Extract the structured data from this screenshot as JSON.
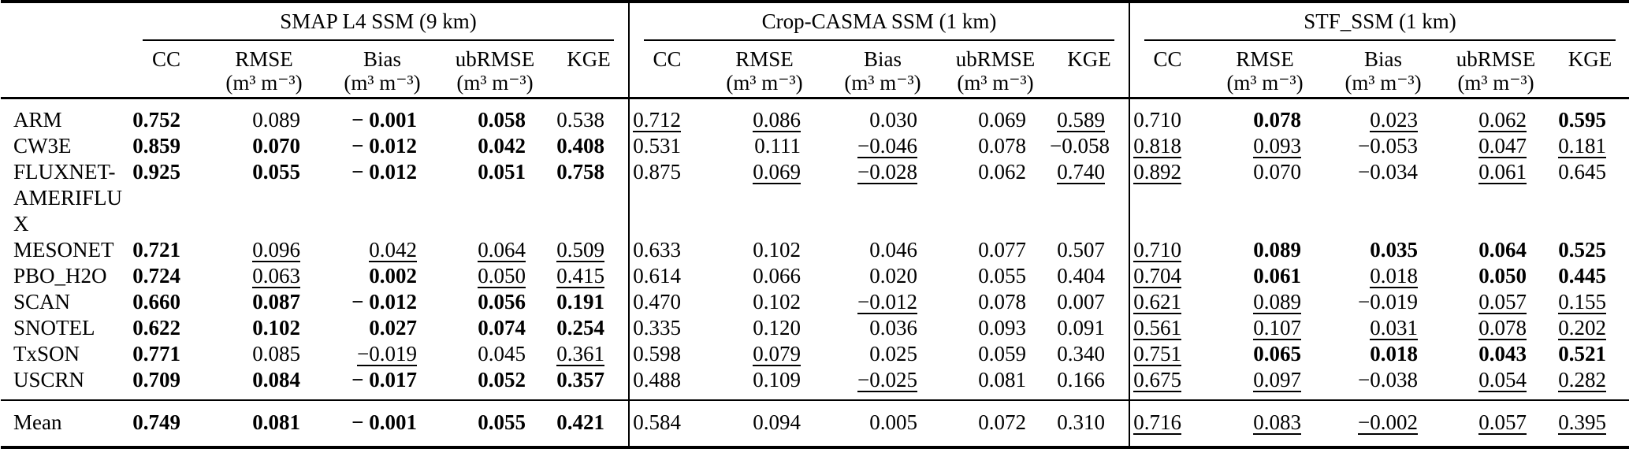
{
  "table": {
    "groups": [
      {
        "label": "SMAP L4 SSM (9 km)"
      },
      {
        "label": "Crop-CASMA SSM (1 km)"
      },
      {
        "label": "STF_SSM (1 km)"
      }
    ],
    "metrics": [
      {
        "name": "CC",
        "unit": ""
      },
      {
        "name": "RMSE",
        "unit": "(m³ m⁻³)"
      },
      {
        "name": "Bias",
        "unit": "(m³ m⁻³)"
      },
      {
        "name": "ubRMSE",
        "unit": "(m³ m⁻³)"
      },
      {
        "name": "KGE",
        "unit": ""
      }
    ],
    "rows": [
      {
        "label": "ARM",
        "cells": [
          {
            "v": "0.752",
            "s": "b"
          },
          {
            "v": "0.089",
            "s": ""
          },
          {
            "v": "− 0.001",
            "s": "b"
          },
          {
            "v": "0.058",
            "s": "b"
          },
          {
            "v": "0.538",
            "s": ""
          },
          {
            "v": "0.712",
            "s": "u"
          },
          {
            "v": "0.086",
            "s": "u"
          },
          {
            "v": "0.030",
            "s": ""
          },
          {
            "v": "0.069",
            "s": ""
          },
          {
            "v": "0.589",
            "s": "u"
          },
          {
            "v": "0.710",
            "s": ""
          },
          {
            "v": "0.078",
            "s": "b"
          },
          {
            "v": "0.023",
            "s": "u"
          },
          {
            "v": "0.062",
            "s": "u"
          },
          {
            "v": "0.595",
            "s": "b"
          }
        ]
      },
      {
        "label": "CW3E",
        "cells": [
          {
            "v": "0.859",
            "s": "b"
          },
          {
            "v": "0.070",
            "s": "b"
          },
          {
            "v": "− 0.012",
            "s": "b"
          },
          {
            "v": "0.042",
            "s": "b"
          },
          {
            "v": "0.408",
            "s": "b"
          },
          {
            "v": "0.531",
            "s": ""
          },
          {
            "v": "0.111",
            "s": ""
          },
          {
            "v": "−0.046",
            "s": "u"
          },
          {
            "v": "0.078",
            "s": ""
          },
          {
            "v": "−0.058",
            "s": ""
          },
          {
            "v": "0.818",
            "s": "u"
          },
          {
            "v": "0.093",
            "s": "u"
          },
          {
            "v": "−0.053",
            "s": ""
          },
          {
            "v": "0.047",
            "s": "u"
          },
          {
            "v": "0.181",
            "s": "u"
          }
        ]
      },
      {
        "label": "FLUXNET-AMERIFLUX",
        "cells": [
          {
            "v": "0.925",
            "s": "b"
          },
          {
            "v": "0.055",
            "s": "b"
          },
          {
            "v": "− 0.012",
            "s": "b"
          },
          {
            "v": "0.051",
            "s": "b"
          },
          {
            "v": "0.758",
            "s": "b"
          },
          {
            "v": "0.875",
            "s": ""
          },
          {
            "v": "0.069",
            "s": "u"
          },
          {
            "v": "−0.028",
            "s": "u"
          },
          {
            "v": "0.062",
            "s": ""
          },
          {
            "v": "0.740",
            "s": "u"
          },
          {
            "v": "0.892",
            "s": "u"
          },
          {
            "v": "0.070",
            "s": ""
          },
          {
            "v": "−0.034",
            "s": ""
          },
          {
            "v": "0.061",
            "s": "u"
          },
          {
            "v": "0.645",
            "s": ""
          }
        ]
      },
      {
        "label": "MESONET",
        "cells": [
          {
            "v": "0.721",
            "s": "b"
          },
          {
            "v": "0.096",
            "s": "u"
          },
          {
            "v": "0.042",
            "s": "u"
          },
          {
            "v": "0.064",
            "s": "u"
          },
          {
            "v": "0.509",
            "s": "u"
          },
          {
            "v": "0.633",
            "s": ""
          },
          {
            "v": "0.102",
            "s": ""
          },
          {
            "v": "0.046",
            "s": ""
          },
          {
            "v": "0.077",
            "s": ""
          },
          {
            "v": "0.507",
            "s": ""
          },
          {
            "v": "0.710",
            "s": "u"
          },
          {
            "v": "0.089",
            "s": "b"
          },
          {
            "v": "0.035",
            "s": "b"
          },
          {
            "v": "0.064",
            "s": "b"
          },
          {
            "v": "0.525",
            "s": "b"
          }
        ]
      },
      {
        "label": "PBO_H2O",
        "cells": [
          {
            "v": "0.724",
            "s": "b"
          },
          {
            "v": "0.063",
            "s": "u"
          },
          {
            "v": "0.002",
            "s": "b"
          },
          {
            "v": "0.050",
            "s": "u"
          },
          {
            "v": "0.415",
            "s": "u"
          },
          {
            "v": "0.614",
            "s": ""
          },
          {
            "v": "0.066",
            "s": ""
          },
          {
            "v": "0.020",
            "s": ""
          },
          {
            "v": "0.055",
            "s": ""
          },
          {
            "v": "0.404",
            "s": ""
          },
          {
            "v": "0.704",
            "s": "u"
          },
          {
            "v": "0.061",
            "s": "b"
          },
          {
            "v": "0.018",
            "s": "u"
          },
          {
            "v": "0.050",
            "s": "b"
          },
          {
            "v": "0.445",
            "s": "b"
          }
        ]
      },
      {
        "label": "SCAN",
        "cells": [
          {
            "v": "0.660",
            "s": "b"
          },
          {
            "v": "0.087",
            "s": "b"
          },
          {
            "v": "− 0.012",
            "s": "b"
          },
          {
            "v": "0.056",
            "s": "b"
          },
          {
            "v": "0.191",
            "s": "b"
          },
          {
            "v": "0.470",
            "s": ""
          },
          {
            "v": "0.102",
            "s": ""
          },
          {
            "v": "−0.012",
            "s": "u"
          },
          {
            "v": "0.078",
            "s": ""
          },
          {
            "v": "0.007",
            "s": ""
          },
          {
            "v": "0.621",
            "s": "u"
          },
          {
            "v": "0.089",
            "s": "u"
          },
          {
            "v": "−0.019",
            "s": ""
          },
          {
            "v": "0.057",
            "s": "u"
          },
          {
            "v": "0.155",
            "s": "u"
          }
        ]
      },
      {
        "label": "SNOTEL",
        "cells": [
          {
            "v": "0.622",
            "s": "b"
          },
          {
            "v": "0.102",
            "s": "b"
          },
          {
            "v": "0.027",
            "s": "b"
          },
          {
            "v": "0.074",
            "s": "b"
          },
          {
            "v": "0.254",
            "s": "b"
          },
          {
            "v": "0.335",
            "s": ""
          },
          {
            "v": "0.120",
            "s": ""
          },
          {
            "v": "0.036",
            "s": ""
          },
          {
            "v": "0.093",
            "s": ""
          },
          {
            "v": "0.091",
            "s": ""
          },
          {
            "v": "0.561",
            "s": "u"
          },
          {
            "v": "0.107",
            "s": "u"
          },
          {
            "v": "0.031",
            "s": "u"
          },
          {
            "v": "0.078",
            "s": "u"
          },
          {
            "v": "0.202",
            "s": "u"
          }
        ]
      },
      {
        "label": "TxSON",
        "cells": [
          {
            "v": "0.771",
            "s": "b"
          },
          {
            "v": "0.085",
            "s": ""
          },
          {
            "v": "−0.019",
            "s": "u"
          },
          {
            "v": "0.045",
            "s": ""
          },
          {
            "v": "0.361",
            "s": "u"
          },
          {
            "v": "0.598",
            "s": ""
          },
          {
            "v": "0.079",
            "s": "u"
          },
          {
            "v": "0.025",
            "s": ""
          },
          {
            "v": "0.059",
            "s": ""
          },
          {
            "v": "0.340",
            "s": ""
          },
          {
            "v": "0.751",
            "s": "u"
          },
          {
            "v": "0.065",
            "s": "b"
          },
          {
            "v": "0.018",
            "s": "b"
          },
          {
            "v": "0.043",
            "s": "b"
          },
          {
            "v": "0.521",
            "s": "b"
          }
        ]
      },
      {
        "label": "USCRN",
        "cells": [
          {
            "v": "0.709",
            "s": "b"
          },
          {
            "v": "0.084",
            "s": "b"
          },
          {
            "v": "− 0.017",
            "s": "b"
          },
          {
            "v": "0.052",
            "s": "b"
          },
          {
            "v": "0.357",
            "s": "b"
          },
          {
            "v": "0.488",
            "s": ""
          },
          {
            "v": "0.109",
            "s": ""
          },
          {
            "v": "−0.025",
            "s": "u"
          },
          {
            "v": "0.081",
            "s": ""
          },
          {
            "v": "0.166",
            "s": ""
          },
          {
            "v": "0.675",
            "s": "u"
          },
          {
            "v": "0.097",
            "s": "u"
          },
          {
            "v": "−0.038",
            "s": ""
          },
          {
            "v": "0.054",
            "s": "u"
          },
          {
            "v": "0.282",
            "s": "u"
          }
        ]
      }
    ],
    "mean": {
      "label": "Mean",
      "cells": [
        {
          "v": "0.749",
          "s": "b"
        },
        {
          "v": "0.081",
          "s": "b"
        },
        {
          "v": "− 0.001",
          "s": "b"
        },
        {
          "v": "0.055",
          "s": "b"
        },
        {
          "v": "0.421",
          "s": "b"
        },
        {
          "v": "0.584",
          "s": ""
        },
        {
          "v": "0.094",
          "s": ""
        },
        {
          "v": "0.005",
          "s": ""
        },
        {
          "v": "0.072",
          "s": ""
        },
        {
          "v": "0.310",
          "s": ""
        },
        {
          "v": "0.716",
          "s": "u"
        },
        {
          "v": "0.083",
          "s": "u"
        },
        {
          "v": "−0.002",
          "s": "u"
        },
        {
          "v": "0.057",
          "s": "u"
        },
        {
          "v": "0.395",
          "s": "u"
        }
      ]
    }
  }
}
